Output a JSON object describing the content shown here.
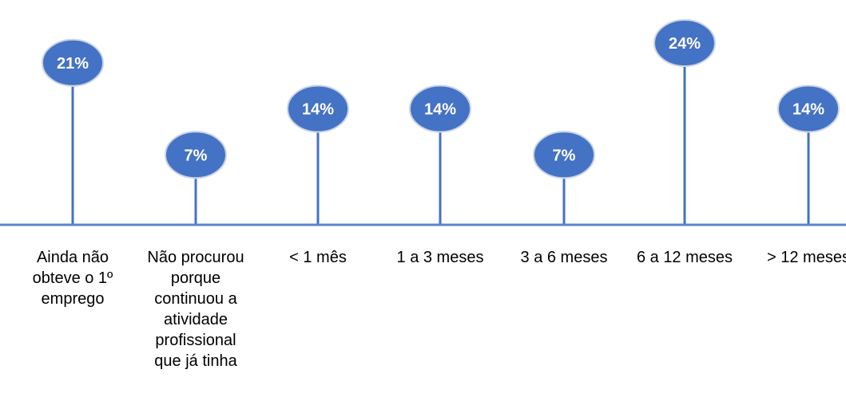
{
  "chart_data": {
    "type": "lollipop",
    "categories": [
      "Ainda não obteve o 1º emprego",
      "Não procurou porque continuou a atividade profissional que já tinha",
      "< 1  mês",
      "1  a  3 meses",
      "3  a  6 meses",
      "6  a 12 meses",
      "> 12 meses"
    ],
    "category_label_lines": [
      [
        "Ainda não",
        "obteve o 1º",
        "emprego"
      ],
      [
        "Não procurou",
        "porque",
        "continuou a",
        "atividade",
        "profissional",
        "que já tinha"
      ],
      [
        "< 1  mês"
      ],
      [
        "1  a  3 meses"
      ],
      [
        "3  a  6 meses"
      ],
      [
        "6  a 12 meses"
      ],
      [
        "> 12 meses"
      ]
    ],
    "values": [
      21,
      7,
      14,
      14,
      7,
      24,
      14
    ],
    "data_labels": [
      "21%",
      "7%",
      "14%",
      "14%",
      "7%",
      "24%",
      "14%"
    ],
    "unit": "%",
    "ylim": [
      0,
      24
    ],
    "grid": false,
    "legend": "none",
    "colors": {
      "stem": "#4472c4",
      "marker_fill": "#4472c4",
      "marker_stroke": "#c9d3e6",
      "label_text": "#ffffff",
      "axis": "#5b85c6"
    }
  }
}
